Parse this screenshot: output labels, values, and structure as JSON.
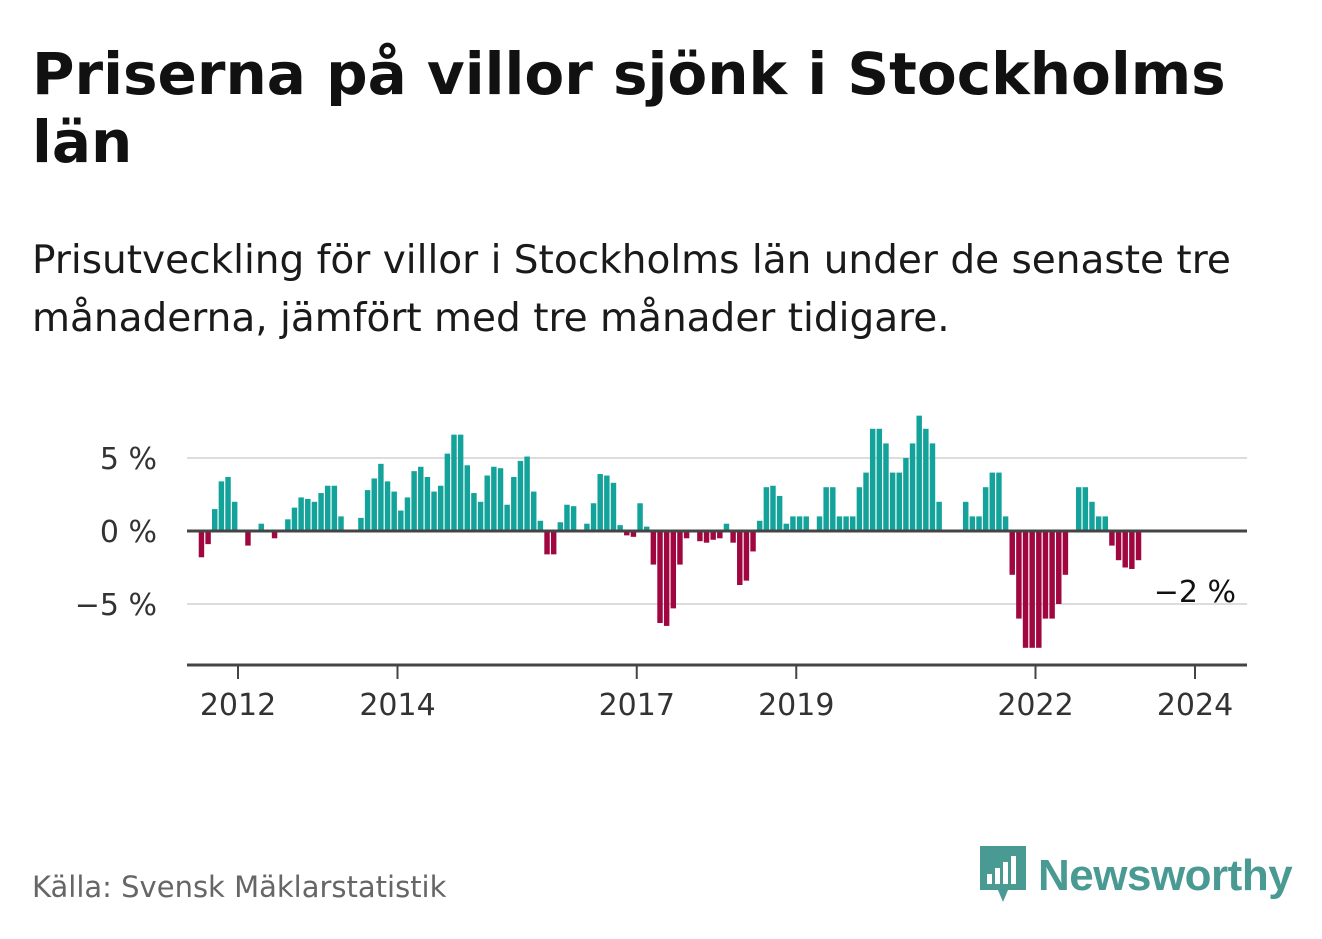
{
  "title": "Priserna på villor sjönk i Stockholms län",
  "subtitle": "Prisutveckling för villor i Stockholms län under de senaste tre månaderna, jämfört med tre månader tidigare.",
  "source": "Källa: Svensk Mäklarstatistik",
  "brand": "Newsworthy",
  "colors": {
    "positive": "#13a39b",
    "negative": "#a0063f",
    "brand": "#4a9a94"
  },
  "chart_data": {
    "type": "bar",
    "title": "Priserna på villor sjönk i Stockholms län",
    "xlabel": "",
    "ylabel": "",
    "ylim": [
      -9,
      8
    ],
    "yticks": [
      5,
      0,
      -5
    ],
    "ytick_labels": [
      "5 %",
      "0 %",
      "−5 %"
    ],
    "xticks": [
      2012,
      2014,
      2017,
      2019,
      2022,
      2024
    ],
    "xtick_labels": [
      "2012",
      "2014",
      "2017",
      "2019",
      "2022",
      "2024"
    ],
    "start_year": 2011.5,
    "annotation": "−2 %",
    "values": [
      -1.8,
      -0.9,
      1.5,
      3.4,
      3.7,
      2.0,
      0,
      -1.0,
      0,
      0.5,
      0,
      -0.5,
      0,
      0.8,
      1.6,
      2.3,
      2.2,
      2.0,
      2.6,
      3.1,
      3.1,
      1.0,
      0,
      0,
      0.9,
      2.8,
      3.6,
      4.6,
      3.4,
      2.7,
      1.4,
      2.3,
      4.1,
      4.4,
      3.7,
      2.7,
      3.1,
      5.3,
      6.6,
      6.6,
      4.5,
      2.6,
      2.0,
      3.8,
      4.4,
      4.3,
      1.8,
      3.7,
      4.8,
      5.1,
      2.7,
      0.7,
      -1.6,
      -1.6,
      0.6,
      1.8,
      1.7,
      0,
      0.5,
      1.9,
      3.9,
      3.8,
      3.3,
      0.4,
      -0.3,
      -0.4,
      1.9,
      0.3,
      -2.3,
      -6.3,
      -6.5,
      -5.3,
      -2.3,
      -0.5,
      0,
      -0.7,
      -0.8,
      -0.6,
      -0.5,
      0.5,
      -0.8,
      -3.7,
      -3.4,
      -1.4,
      0.7,
      3.0,
      3.1,
      2.4,
      0.5,
      1.0,
      1.0,
      1.0,
      0,
      1.0,
      3.0,
      3.0,
      1.0,
      1.0,
      1.0,
      3.0,
      4.0,
      7.0,
      7.0,
      6.0,
      4.0,
      4.0,
      5.0,
      6.0,
      7.9,
      7.0,
      6.0,
      2.0,
      0,
      0,
      0,
      2.0,
      1.0,
      1.0,
      3.0,
      4.0,
      4.0,
      1.0,
      -3.0,
      -6.0,
      -8.0,
      -8.0,
      -8.0,
      -6.0,
      -6.0,
      -5.0,
      -3.0,
      0,
      3.0,
      3.0,
      2.0,
      1.0,
      1.0,
      -1.0,
      -2.0,
      -2.5,
      -2.6,
      -2.0
    ]
  }
}
